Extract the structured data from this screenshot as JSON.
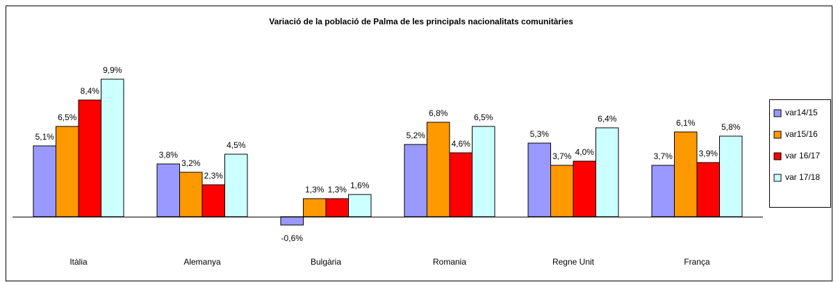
{
  "chart_data": {
    "type": "bar",
    "title": "Variació de la població de Palma de les principals nacionalitats comunitàries",
    "categories": [
      "Itàlia",
      "Alemanya",
      "Bulgària",
      "Romania",
      "Regne Unit",
      "França"
    ],
    "series": [
      {
        "name": "var14/15",
        "color": "#9999ff",
        "values": [
          5.1,
          3.8,
          -0.6,
          5.2,
          5.3,
          3.7
        ],
        "value_labels": [
          "5,1%",
          "3,8%",
          "-0,6%",
          "5,2%",
          "5,3%",
          "3,7%"
        ]
      },
      {
        "name": "var15/16",
        "color": "#ff9900",
        "values": [
          6.5,
          3.2,
          1.3,
          6.8,
          3.7,
          6.1
        ],
        "value_labels": [
          "6,5%",
          "3,2%",
          "1,3%",
          "6,8%",
          "3,7%",
          "6,1%"
        ]
      },
      {
        "name": "var 16/17",
        "color": "#ff0000",
        "values": [
          8.4,
          2.3,
          1.3,
          4.6,
          4.0,
          3.9
        ],
        "value_labels": [
          "8,4%",
          "2,3%",
          "1,3%",
          "4,6%",
          "4,0%",
          "3,9%"
        ]
      },
      {
        "name": "var 17/18",
        "color": "#ccffff",
        "values": [
          9.9,
          4.5,
          1.6,
          6.5,
          6.4,
          5.8
        ],
        "value_labels": [
          "9,9%",
          "4,5%",
          "1,6%",
          "6,5%",
          "6,4%",
          "5,8%"
        ]
      }
    ],
    "legend": "right"
  }
}
